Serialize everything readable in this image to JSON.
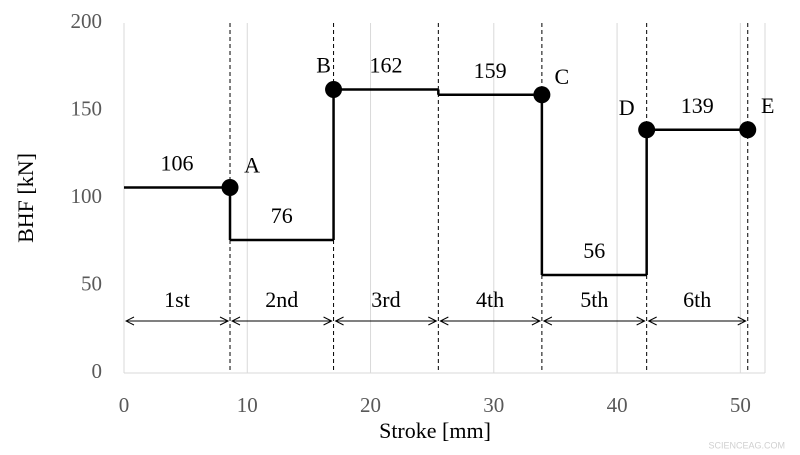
{
  "chart_data": {
    "type": "step",
    "x_label": "Stroke [mm]",
    "y_label": "BHF [kN]",
    "xlim": [
      0,
      52
    ],
    "xticks": [
      0,
      10,
      20,
      30,
      40,
      50
    ],
    "ylim": [
      0,
      200
    ],
    "yticks": [
      0,
      50,
      100,
      150,
      200
    ],
    "grid": true,
    "color": "#000000",
    "categories": [
      "1st",
      "2nd",
      "3rd",
      "4th",
      "5th",
      "6th"
    ],
    "bins": [
      0,
      8.6,
      17,
      25.5,
      33.9,
      42.4,
      50.6
    ],
    "values": [
      106,
      76,
      162,
      159,
      56,
      139
    ],
    "points": {
      "labels": [
        "A",
        "B",
        "C",
        "D",
        "E"
      ],
      "x": [
        8.6,
        17,
        33.9,
        42.4,
        50.6
      ],
      "y": [
        106,
        162,
        159,
        139,
        139
      ]
    },
    "watermark": "SCIENCEAG.COM"
  }
}
